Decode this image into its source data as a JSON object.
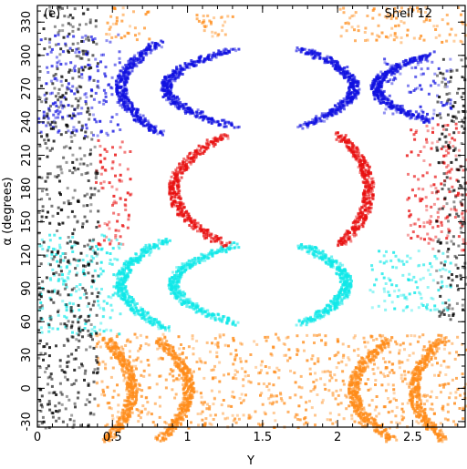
{
  "chart_data": {
    "type": "scatter",
    "panel_label": "(e)",
    "annotation": "Shell 12",
    "xlabel": "Y",
    "ylabel": "α (degrees)",
    "xlim": [
      0,
      2.85
    ],
    "ylim": [
      -35,
      345
    ],
    "x_ticks": [
      "0",
      "0.5",
      "1",
      "1.5",
      "2",
      "2.5"
    ],
    "x_tick_values": [
      0,
      0.5,
      1,
      1.5,
      2,
      2.5
    ],
    "y_ticks": [
      "-30",
      "0",
      "30",
      "60",
      "90",
      "120",
      "150",
      "180",
      "210",
      "240",
      "270",
      "300",
      "330"
    ],
    "y_tick_values": [
      -30,
      0,
      30,
      60,
      90,
      120,
      150,
      180,
      210,
      240,
      270,
      300,
      330
    ],
    "grid": false,
    "colors": {
      "orange": "#ff8c1a",
      "blue": "#1010e0",
      "red": "#e81010",
      "cyan": "#10e8e8",
      "black": "#000000"
    },
    "series": [
      {
        "color": "orange",
        "regions": [
          {
            "kind": "band",
            "x": [
              0.38,
              2.85
            ],
            "y": [
              -35,
              50
            ]
          },
          {
            "kind": "arc",
            "y_center": 0,
            "y_half": 45,
            "x_at_center": 0.62,
            "x_at_ends": 0.45
          },
          {
            "kind": "arc",
            "y_center": 0,
            "y_half": 45,
            "x_at_center": 1.0,
            "x_at_ends": 0.8
          },
          {
            "kind": "arc",
            "y_center": 0,
            "y_half": 45,
            "x_at_center": 2.1,
            "x_at_ends": 2.35
          },
          {
            "kind": "arc",
            "y_center": 0,
            "y_half": 45,
            "x_at_center": 2.5,
            "x_at_ends": 2.7
          },
          {
            "kind": "band",
            "x": [
              0.45,
              0.75
            ],
            "y": [
              315,
              345
            ]
          },
          {
            "kind": "band",
            "x": [
              1.05,
              1.3
            ],
            "y": [
              318,
              338
            ]
          },
          {
            "kind": "band",
            "x": [
              2.0,
              2.85
            ],
            "y": [
              312,
              345
            ]
          }
        ]
      },
      {
        "color": "blue",
        "regions": [
          {
            "kind": "band",
            "x": [
              0.0,
              0.55
            ],
            "y": [
              228,
              320
            ]
          },
          {
            "kind": "arc",
            "y_center": 272,
            "y_half": 40,
            "x_at_center": 0.55,
            "x_at_ends": 0.8
          },
          {
            "kind": "arc",
            "y_center": 272,
            "y_half": 35,
            "x_at_center": 0.85,
            "x_at_ends": 1.3
          },
          {
            "kind": "arc",
            "y_center": 272,
            "y_half": 35,
            "x_at_center": 2.1,
            "x_at_ends": 1.75
          },
          {
            "kind": "arc",
            "y_center": 272,
            "y_half": 30,
            "x_at_center": 2.25,
            "x_at_ends": 2.6
          },
          {
            "kind": "band",
            "x": [
              2.3,
              2.75
            ],
            "y": [
              248,
              300
            ]
          }
        ]
      },
      {
        "color": "red",
        "regions": [
          {
            "kind": "band",
            "x": [
              0.38,
              0.62
            ],
            "y": [
              130,
              225
            ]
          },
          {
            "kind": "arc",
            "y_center": 180,
            "y_half": 50,
            "x_at_center": 0.9,
            "x_at_ends": 1.25
          },
          {
            "kind": "arc",
            "y_center": 180,
            "y_half": 50,
            "x_at_center": 2.2,
            "x_at_ends": 2.0
          },
          {
            "kind": "band",
            "x": [
              2.45,
              2.85
            ],
            "y": [
              125,
              240
            ]
          }
        ]
      },
      {
        "color": "cyan",
        "regions": [
          {
            "kind": "band",
            "x": [
              0.0,
              0.55
            ],
            "y": [
              50,
              140
            ]
          },
          {
            "kind": "arc",
            "y_center": 95,
            "y_half": 40,
            "x_at_center": 0.55,
            "x_at_ends": 0.85
          },
          {
            "kind": "arc",
            "y_center": 95,
            "y_half": 35,
            "x_at_center": 0.9,
            "x_at_ends": 1.3
          },
          {
            "kind": "arc",
            "y_center": 95,
            "y_half": 35,
            "x_at_center": 2.05,
            "x_at_ends": 1.75
          },
          {
            "kind": "band",
            "x": [
              2.2,
              2.75
            ],
            "y": [
              70,
              125
            ]
          }
        ]
      },
      {
        "color": "black",
        "regions": [
          {
            "kind": "band",
            "x": [
              0.0,
              0.4
            ],
            "y": [
              -35,
              345
            ]
          },
          {
            "kind": "band",
            "x": [
              2.65,
              2.85
            ],
            "y": [
              60,
              300
            ]
          }
        ]
      }
    ]
  }
}
